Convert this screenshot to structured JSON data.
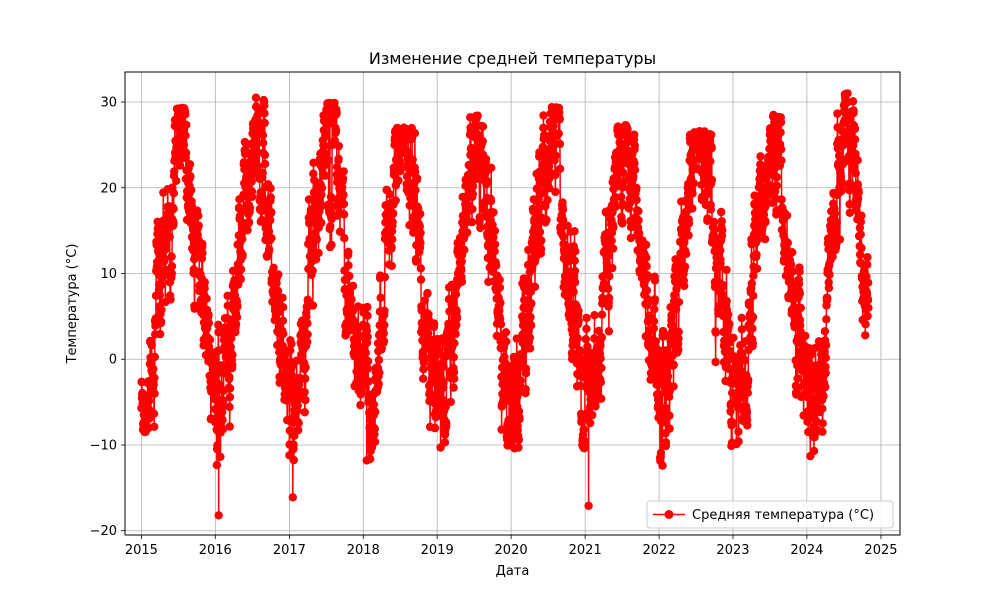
{
  "chart_data": {
    "type": "line",
    "title": "Изменение средней температуры",
    "xlabel": "Дата",
    "ylabel": "Температура (°C)",
    "xlim": [
      "2014-10-12",
      "2025-04-05"
    ],
    "ylim": [
      -20.5,
      33.5
    ],
    "x_ticks": [
      "2015",
      "2016",
      "2017",
      "2018",
      "2019",
      "2020",
      "2021",
      "2022",
      "2023",
      "2024",
      "2025"
    ],
    "y_ticks": [
      -20,
      -10,
      0,
      10,
      20,
      30
    ],
    "grid": true,
    "legend_position": "lower right",
    "series": [
      {
        "name": "Средняя температура (°C)",
        "color": "#ff0000",
        "marker": "circle",
        "x_start": "2015-01-01",
        "x_end": "2024-10-31",
        "sampling": "daily",
        "seasonal_profile": {
          "peak_month": "July",
          "trough_month": "January",
          "typical_summer_high": 25,
          "typical_winter_low": -5
        },
        "annual_extremes": [
          {
            "year": "2015",
            "max": 29.3,
            "min": -8.5
          },
          {
            "year": "2016",
            "max": 30.5,
            "min": -18.2
          },
          {
            "year": "2017",
            "max": 29.9,
            "min": -16.1
          },
          {
            "year": "2018",
            "max": 27.0,
            "min": -11.8
          },
          {
            "year": "2019",
            "max": 28.4,
            "min": -10.3
          },
          {
            "year": "2020",
            "max": 29.4,
            "min": -10.4
          },
          {
            "year": "2021",
            "max": 27.3,
            "min": -17.1
          },
          {
            "year": "2022",
            "max": 26.6,
            "min": -12.4
          },
          {
            "year": "2023",
            "max": 28.5,
            "min": -9.9
          },
          {
            "year": "2024",
            "max": 31.0,
            "min": -11.3
          }
        ],
        "last_value": 6.0
      }
    ]
  }
}
